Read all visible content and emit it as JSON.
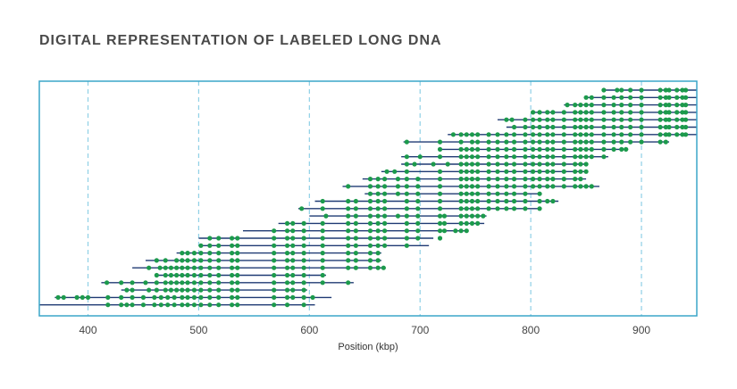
{
  "chart_data": {
    "type": "scatter",
    "title": "DIGITAL REPRESENTATION OF LABELED LONG DNA",
    "xlabel": "Position (kbp)",
    "ylabel": "",
    "xlim": [
      356,
      950
    ],
    "xticks": [
      400,
      500,
      600,
      700,
      800,
      900
    ],
    "grid": "vertical dashed",
    "colors": {
      "frame": "#3aa5c9",
      "molecule": "#1f3a73",
      "label": "#1c9a4c",
      "grid": "#8fd0e6"
    },
    "molecules": [
      {
        "start": 865,
        "end": 950,
        "labels": [
          866,
          878,
          882,
          890,
          900,
          917,
          922,
          925,
          932,
          937,
          940
        ]
      },
      {
        "start": 848,
        "end": 950,
        "labels": [
          850,
          855,
          866,
          875,
          882,
          890,
          900,
          917,
          922,
          925,
          932,
          937,
          940
        ]
      },
      {
        "start": 830,
        "end": 950,
        "labels": [
          833,
          840,
          845,
          850,
          855,
          866,
          875,
          882,
          890,
          900,
          917,
          922,
          925,
          932,
          937,
          940
        ]
      },
      {
        "start": 800,
        "end": 950,
        "labels": [
          802,
          808,
          815,
          820,
          830,
          840,
          845,
          850,
          855,
          866,
          875,
          882,
          890,
          900,
          917,
          922,
          925,
          932,
          937,
          940
        ]
      },
      {
        "start": 770,
        "end": 950,
        "labels": [
          778,
          783,
          795,
          802,
          808,
          815,
          820,
          830,
          840,
          845,
          850,
          855,
          866,
          875,
          882,
          890,
          900,
          917,
          922,
          925,
          932,
          937,
          940
        ]
      },
      {
        "start": 778,
        "end": 950,
        "labels": [
          785,
          795,
          802,
          808,
          815,
          820,
          830,
          840,
          845,
          850,
          855,
          866,
          875,
          882,
          890,
          900,
          917,
          922,
          925,
          932,
          937,
          940
        ]
      },
      {
        "start": 725,
        "end": 950,
        "labels": [
          730,
          737,
          742,
          747,
          752,
          762,
          770,
          778,
          785,
          795,
          802,
          808,
          815,
          820,
          830,
          840,
          845,
          850,
          855,
          866,
          875,
          882,
          890,
          900,
          917,
          922,
          925,
          932,
          937,
          940
        ]
      },
      {
        "start": 685,
        "end": 925,
        "labels": [
          688,
          718,
          737,
          747,
          752,
          762,
          770,
          778,
          785,
          795,
          802,
          808,
          815,
          820,
          830,
          840,
          845,
          850,
          855,
          866,
          875,
          882,
          890,
          900,
          917,
          922
        ]
      },
      {
        "start": 718,
        "end": 888,
        "labels": [
          718,
          737,
          742,
          747,
          752,
          762,
          770,
          778,
          785,
          795,
          802,
          808,
          815,
          820,
          830,
          840,
          845,
          850,
          855,
          866,
          875,
          882,
          886
        ]
      },
      {
        "start": 683,
        "end": 870,
        "labels": [
          688,
          700,
          718,
          737,
          742,
          747,
          752,
          762,
          770,
          778,
          785,
          795,
          802,
          808,
          815,
          820,
          830,
          840,
          845,
          850,
          855,
          866
        ]
      },
      {
        "start": 683,
        "end": 850,
        "labels": [
          688,
          695,
          712,
          725,
          737,
          742,
          747,
          752,
          762,
          770,
          778,
          785,
          795,
          802,
          808,
          815,
          820,
          830,
          840,
          845,
          850
        ]
      },
      {
        "start": 665,
        "end": 850,
        "labels": [
          670,
          677,
          688,
          718,
          737,
          742,
          747,
          752,
          762,
          770,
          778,
          785,
          795,
          802,
          808,
          815,
          820,
          830,
          840,
          845,
          850
        ]
      },
      {
        "start": 648,
        "end": 850,
        "labels": [
          655,
          662,
          668,
          680,
          688,
          698,
          718,
          737,
          742,
          747,
          752,
          762,
          770,
          778,
          785,
          795,
          802,
          808,
          815,
          820,
          830,
          840,
          845
        ]
      },
      {
        "start": 630,
        "end": 862,
        "labels": [
          635,
          655,
          662,
          668,
          680,
          688,
          698,
          718,
          737,
          742,
          747,
          752,
          762,
          770,
          778,
          785,
          795,
          802,
          808,
          815,
          820,
          830,
          840,
          845,
          850,
          855
        ]
      },
      {
        "start": 650,
        "end": 810,
        "labels": [
          655,
          662,
          668,
          680,
          688,
          698,
          718,
          737,
          742,
          747,
          752,
          762,
          770,
          778,
          785,
          795,
          808
        ]
      },
      {
        "start": 605,
        "end": 825,
        "labels": [
          612,
          635,
          642,
          655,
          662,
          668,
          688,
          698,
          718,
          737,
          742,
          747,
          752,
          762,
          770,
          778,
          785,
          795,
          808,
          815,
          820
        ]
      },
      {
        "start": 590,
        "end": 808,
        "labels": [
          593,
          612,
          635,
          642,
          655,
          662,
          668,
          688,
          698,
          718,
          737,
          742,
          747,
          752,
          762,
          770,
          778,
          785,
          795,
          808
        ]
      },
      {
        "start": 600,
        "end": 760,
        "labels": [
          615,
          635,
          642,
          655,
          662,
          668,
          680,
          688,
          698,
          718,
          722,
          737,
          742,
          747,
          752,
          757
        ]
      },
      {
        "start": 572,
        "end": 758,
        "labels": [
          580,
          585,
          595,
          612,
          635,
          642,
          655,
          662,
          668,
          688,
          698,
          718,
          722,
          737,
          742,
          747,
          752
        ]
      },
      {
        "start": 540,
        "end": 742,
        "labels": [
          568,
          580,
          585,
          595,
          612,
          635,
          642,
          655,
          662,
          668,
          688,
          698,
          718,
          722,
          732,
          737,
          742
        ]
      },
      {
        "start": 500,
        "end": 712,
        "labels": [
          510,
          518,
          530,
          535,
          568,
          580,
          585,
          595,
          612,
          635,
          642,
          655,
          662,
          668,
          688,
          698,
          718
        ]
      },
      {
        "start": 500,
        "end": 708,
        "labels": [
          502,
          510,
          518,
          530,
          535,
          568,
          580,
          585,
          595,
          612,
          635,
          642,
          655,
          662,
          668,
          688
        ]
      },
      {
        "start": 480,
        "end": 665,
        "labels": [
          485,
          490,
          496,
          502,
          510,
          518,
          530,
          535,
          568,
          580,
          585,
          595,
          612,
          635,
          642,
          655,
          662
        ]
      },
      {
        "start": 452,
        "end": 665,
        "labels": [
          462,
          470,
          480,
          485,
          490,
          496,
          502,
          510,
          518,
          530,
          535,
          568,
          580,
          585,
          595,
          612,
          635,
          642,
          655,
          662
        ]
      },
      {
        "start": 440,
        "end": 668,
        "labels": [
          455,
          465,
          470,
          475,
          480,
          485,
          490,
          496,
          502,
          510,
          518,
          530,
          535,
          568,
          580,
          585,
          595,
          612,
          635,
          642,
          655,
          662,
          667
        ]
      },
      {
        "start": 462,
        "end": 615,
        "labels": [
          462,
          470,
          475,
          480,
          485,
          490,
          496,
          502,
          510,
          518,
          530,
          535,
          568,
          580,
          585,
          595,
          612
        ]
      },
      {
        "start": 412,
        "end": 640,
        "labels": [
          417,
          430,
          440,
          452,
          462,
          470,
          475,
          480,
          485,
          490,
          496,
          502,
          510,
          518,
          530,
          535,
          568,
          580,
          585,
          595,
          612,
          635
        ]
      },
      {
        "start": 430,
        "end": 598,
        "labels": [
          435,
          440,
          455,
          462,
          470,
          475,
          480,
          485,
          490,
          496,
          502,
          510,
          518,
          530,
          535,
          568,
          580,
          585,
          595
        ]
      },
      {
        "start": 370,
        "end": 620,
        "labels": [
          373,
          378,
          390,
          395,
          400,
          418,
          430,
          440,
          450,
          460,
          466,
          472,
          478,
          485,
          490,
          496,
          502,
          510,
          518,
          530,
          535,
          568,
          580,
          585,
          595,
          603
        ]
      },
      {
        "start": 356,
        "end": 605,
        "labels": [
          418,
          430,
          435,
          440,
          450,
          460,
          466,
          472,
          478,
          485,
          490,
          496,
          502,
          510,
          518,
          530,
          535,
          568,
          580,
          595
        ]
      }
    ]
  }
}
